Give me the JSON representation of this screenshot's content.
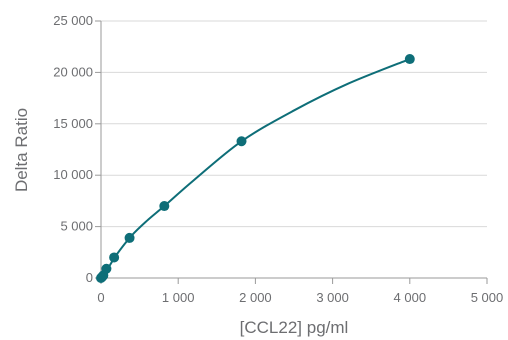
{
  "chart_data": {
    "type": "scatter",
    "title": "",
    "xlabel": "[CCL22] pg/ml",
    "ylabel": "Delta Ratio",
    "xlim": [
      0,
      5000
    ],
    "ylim": [
      0,
      25000
    ],
    "x_ticks": [
      0,
      1000,
      2000,
      3000,
      4000,
      5000
    ],
    "x_tick_labels": [
      "0",
      "1 000",
      "2 000",
      "3 000",
      "4 000",
      "5 000"
    ],
    "y_ticks": [
      0,
      5000,
      10000,
      15000,
      20000,
      25000
    ],
    "y_tick_labels": [
      "0",
      "5 000",
      "10 000",
      "15 000",
      "20 000",
      "25 000"
    ],
    "grid": "horizontal",
    "legend": "none",
    "color": "#0e6e78",
    "series": [
      {
        "points": [
          {
            "x": 0,
            "y": 0
          },
          {
            "x": 14,
            "y": 100
          },
          {
            "x": 30,
            "y": 250
          },
          {
            "x": 70,
            "y": 900
          },
          {
            "x": 170,
            "y": 2000
          },
          {
            "x": 370,
            "y": 3900
          },
          {
            "x": 820,
            "y": 7000
          },
          {
            "x": 1820,
            "y": 13300
          },
          {
            "x": 4000,
            "y": 21300
          }
        ]
      }
    ],
    "fit_curve": {
      "type": "smooth",
      "points": [
        {
          "x": 0,
          "y": 0
        },
        {
          "x": 50,
          "y": 520
        },
        {
          "x": 100,
          "y": 1050
        },
        {
          "x": 200,
          "y": 2250
        },
        {
          "x": 400,
          "y": 4150
        },
        {
          "x": 600,
          "y": 5600
        },
        {
          "x": 820,
          "y": 7000
        },
        {
          "x": 1200,
          "y": 9500
        },
        {
          "x": 1820,
          "y": 13300
        },
        {
          "x": 2500,
          "y": 16300
        },
        {
          "x": 3200,
          "y": 18900
        },
        {
          "x": 4000,
          "y": 21300
        }
      ]
    }
  }
}
